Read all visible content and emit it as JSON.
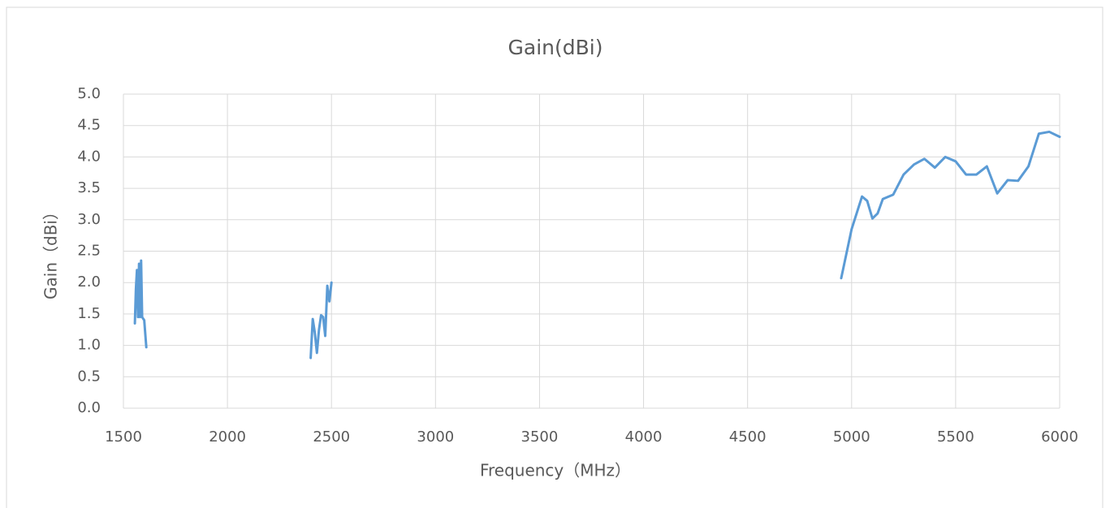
{
  "chart_data": {
    "type": "line",
    "title": "Gain(dBi)",
    "x_label": "Frequency（MHz）",
    "y_label": "Gain（dBi）",
    "x": [
      1555,
      1560,
      1565,
      1570,
      1575,
      1580,
      1585,
      1590,
      1600,
      1610,
      null,
      2400,
      2410,
      2420,
      2430,
      2440,
      2450,
      2460,
      2470,
      2480,
      2490,
      2500,
      null,
      4950,
      5000,
      5050,
      5075,
      5100,
      5125,
      5150,
      5200,
      5250,
      5300,
      5350,
      5400,
      5450,
      5500,
      5550,
      5600,
      5650,
      5700,
      5750,
      5800,
      5850,
      5900,
      5950,
      6000
    ],
    "series": [
      {
        "name": "Gain",
        "color": "#5b9bd5",
        "values": [
          1.35,
          1.9,
          2.2,
          1.45,
          2.3,
          1.45,
          2.35,
          1.45,
          1.4,
          0.97,
          null,
          0.8,
          1.42,
          1.2,
          0.88,
          1.25,
          1.48,
          1.45,
          1.15,
          1.95,
          1.7,
          2.0,
          null,
          2.07,
          2.85,
          3.37,
          3.3,
          3.02,
          3.1,
          3.33,
          3.4,
          3.72,
          3.88,
          3.97,
          3.83,
          4.0,
          3.93,
          3.72,
          3.72,
          3.85,
          3.42,
          3.63,
          3.62,
          3.85,
          4.37,
          4.4,
          4.32
        ]
      }
    ],
    "xlim": [
      1500,
      6000
    ],
    "xticks": [
      1500,
      2000,
      2500,
      3000,
      3500,
      4000,
      4500,
      5000,
      5500,
      6000
    ],
    "ylim": [
      0,
      5
    ],
    "yticks": [
      {
        "value": 0,
        "label": "0.0"
      },
      {
        "value": 0.5,
        "label": "0.5"
      },
      {
        "value": 1,
        "label": "1.0"
      },
      {
        "value": 1.5,
        "label": "1.5"
      },
      {
        "value": 2,
        "label": "2.0"
      },
      {
        "value": 2.5,
        "label": "2.5"
      },
      {
        "value": 3,
        "label": "3.0"
      },
      {
        "value": 3.5,
        "label": "3.5"
      },
      {
        "value": 4,
        "label": "4.0"
      },
      {
        "value": 4.5,
        "label": "4.5"
      },
      {
        "value": 5,
        "label": "5.0"
      }
    ],
    "grid": true
  }
}
